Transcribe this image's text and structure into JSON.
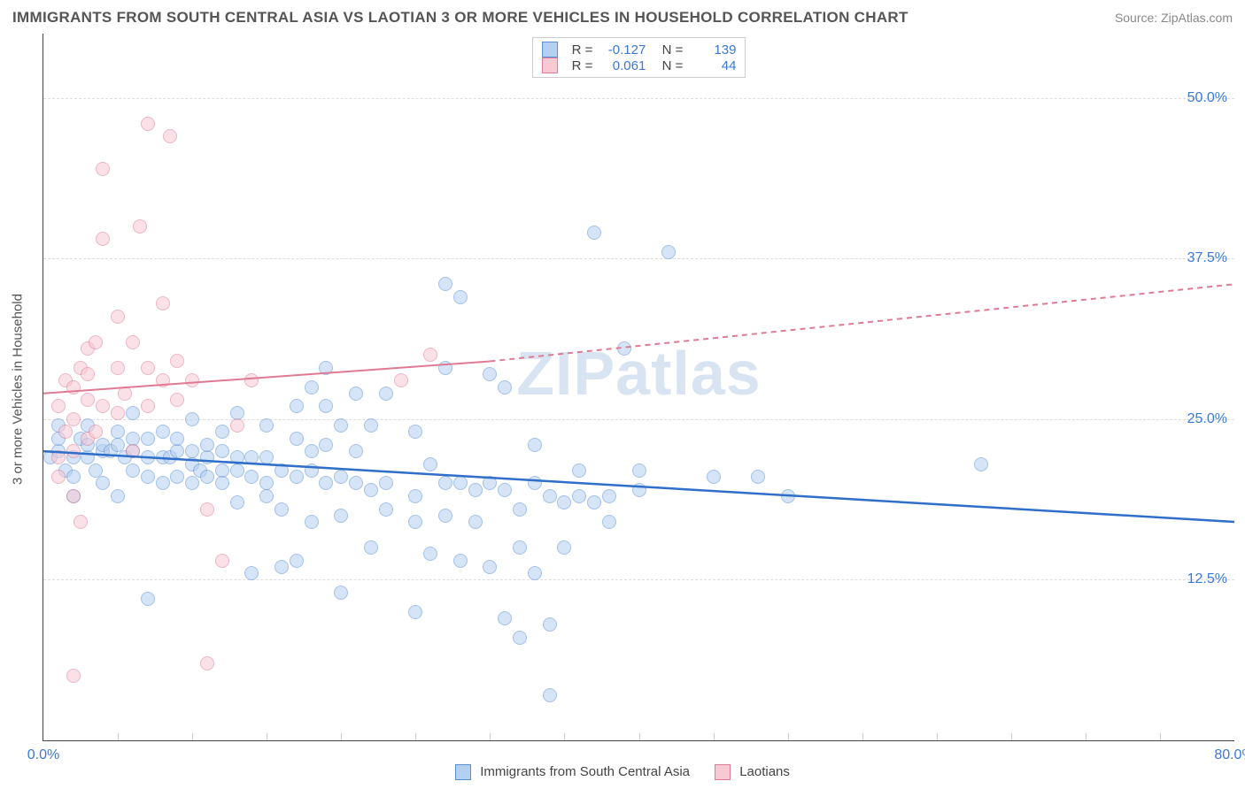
{
  "header": {
    "title": "IMMIGRANTS FROM SOUTH CENTRAL ASIA VS LAOTIAN 3 OR MORE VEHICLES IN HOUSEHOLD CORRELATION CHART",
    "source": "Source: ZipAtlas.com"
  },
  "watermark": "ZIPatlas",
  "chart": {
    "type": "scatter",
    "background_color": "#ffffff",
    "grid_color": "#dddddd",
    "axis_color": "#444444",
    "tick_font_color": "#3a78d6",
    "tick_font_size": 16,
    "xlim": [
      0,
      80
    ],
    "ylim": [
      0,
      55
    ],
    "yticks": [
      12.5,
      25.0,
      37.5,
      50.0
    ],
    "ytick_labels": [
      "12.5%",
      "25.0%",
      "37.5%",
      "50.0%"
    ],
    "xticks": [
      0,
      80
    ],
    "xtick_labels": [
      "0.0%",
      "80.0%"
    ],
    "xtick_minor": [
      5,
      10,
      15,
      20,
      25,
      30,
      35,
      40,
      45,
      50,
      55,
      60,
      65,
      70,
      75
    ],
    "yaxis_title": "3 or more Vehicles in Household",
    "marker_radius": 8,
    "marker_opacity": 0.55,
    "series": [
      {
        "id": "sca",
        "label": "Immigrants from South Central Asia",
        "fill": "#b4cff0",
        "stroke": "#5a8fd6",
        "line_color": "#2f6fc9",
        "line_width": 2.5,
        "R": "-0.127",
        "N": "139",
        "trend": {
          "x1": 0,
          "y1": 22.5,
          "x2": 80,
          "y2": 17.0,
          "dash": null
        },
        "points": [
          [
            0.5,
            22
          ],
          [
            1,
            22.5
          ],
          [
            1,
            23.5
          ],
          [
            1.5,
            21
          ],
          [
            1,
            24.5
          ],
          [
            2,
            22
          ],
          [
            2,
            20.5
          ],
          [
            2,
            19
          ],
          [
            2.5,
            23.5
          ],
          [
            3,
            22
          ],
          [
            3,
            23
          ],
          [
            3,
            24.5
          ],
          [
            3.5,
            21
          ],
          [
            4,
            22.5
          ],
          [
            4,
            23
          ],
          [
            4,
            20
          ],
          [
            4.5,
            22.5
          ],
          [
            5,
            23
          ],
          [
            5,
            24
          ],
          [
            5,
            19
          ],
          [
            5.5,
            22
          ],
          [
            6,
            22.5
          ],
          [
            6,
            21
          ],
          [
            6,
            23.5
          ],
          [
            6,
            25.5
          ],
          [
            7,
            22
          ],
          [
            7,
            20.5
          ],
          [
            7,
            23.5
          ],
          [
            7,
            11
          ],
          [
            8,
            22
          ],
          [
            8,
            20
          ],
          [
            8,
            24
          ],
          [
            8.5,
            22
          ],
          [
            9,
            22.5
          ],
          [
            9,
            20.5
          ],
          [
            9,
            23.5
          ],
          [
            10,
            21.5
          ],
          [
            10,
            20
          ],
          [
            10,
            22.5
          ],
          [
            10,
            25
          ],
          [
            10.5,
            21
          ],
          [
            11,
            22
          ],
          [
            11,
            20.5
          ],
          [
            11,
            23
          ],
          [
            12,
            21
          ],
          [
            12,
            20
          ],
          [
            12,
            22.5
          ],
          [
            12,
            24
          ],
          [
            13,
            22
          ],
          [
            13,
            21
          ],
          [
            13,
            18.5
          ],
          [
            13,
            25.5
          ],
          [
            14,
            20.5
          ],
          [
            14,
            22
          ],
          [
            14,
            13
          ],
          [
            15,
            22
          ],
          [
            15,
            20
          ],
          [
            15,
            24.5
          ],
          [
            15,
            19
          ],
          [
            16,
            21
          ],
          [
            16,
            18
          ],
          [
            16,
            13.5
          ],
          [
            17,
            20.5
          ],
          [
            17,
            23.5
          ],
          [
            17,
            26
          ],
          [
            17,
            14
          ],
          [
            18,
            21
          ],
          [
            18,
            22.5
          ],
          [
            18,
            17
          ],
          [
            18,
            27.5
          ],
          [
            19,
            20
          ],
          [
            19,
            23
          ],
          [
            19,
            26
          ],
          [
            19,
            29
          ],
          [
            20,
            20.5
          ],
          [
            20,
            17.5
          ],
          [
            20,
            24.5
          ],
          [
            20,
            11.5
          ],
          [
            21,
            20
          ],
          [
            21,
            22.5
          ],
          [
            21,
            27
          ],
          [
            22,
            19.5
          ],
          [
            22,
            15
          ],
          [
            22,
            24.5
          ],
          [
            23,
            20
          ],
          [
            23,
            18
          ],
          [
            23,
            27
          ],
          [
            25,
            19
          ],
          [
            25,
            17
          ],
          [
            25,
            24
          ],
          [
            25,
            10
          ],
          [
            26,
            21.5
          ],
          [
            26,
            14.5
          ],
          [
            27,
            20
          ],
          [
            27,
            17.5
          ],
          [
            27,
            29
          ],
          [
            27,
            35.5
          ],
          [
            28,
            20
          ],
          [
            28,
            14
          ],
          [
            28,
            34.5
          ],
          [
            29,
            19.5
          ],
          [
            29,
            17
          ],
          [
            30,
            20
          ],
          [
            30,
            13.5
          ],
          [
            30,
            28.5
          ],
          [
            31,
            19.5
          ],
          [
            31,
            9.5
          ],
          [
            31,
            27.5
          ],
          [
            32,
            18
          ],
          [
            32,
            15
          ],
          [
            32,
            8
          ],
          [
            33,
            20
          ],
          [
            33,
            13
          ],
          [
            33,
            23
          ],
          [
            34,
            19
          ],
          [
            34,
            9
          ],
          [
            34,
            3.5
          ],
          [
            35,
            18.5
          ],
          [
            35,
            15
          ],
          [
            36,
            21
          ],
          [
            36,
            19
          ],
          [
            37,
            18.5
          ],
          [
            37,
            39.5
          ],
          [
            38,
            19
          ],
          [
            38,
            17
          ],
          [
            39,
            30.5
          ],
          [
            40,
            19.5
          ],
          [
            40,
            21
          ],
          [
            42,
            38
          ],
          [
            45,
            20.5
          ],
          [
            48,
            20.5
          ],
          [
            50,
            19
          ],
          [
            63,
            21.5
          ]
        ]
      },
      {
        "id": "lao",
        "label": "Laotians",
        "fill": "#f7c9d4",
        "stroke": "#e07a94",
        "line_color": "#e07a94",
        "line_width": 2,
        "R": "0.061",
        "N": "44",
        "trend": {
          "x1": 0,
          "y1": 27.0,
          "x2": 30,
          "y2": 29.5,
          "dash": null
        },
        "trend_ext": {
          "x1": 30,
          "y1": 29.5,
          "x2": 80,
          "y2": 35.5,
          "dash": "6,5"
        },
        "points": [
          [
            1,
            22
          ],
          [
            1,
            20.5
          ],
          [
            1.5,
            24
          ],
          [
            1,
            26
          ],
          [
            1.5,
            28
          ],
          [
            2,
            25
          ],
          [
            2,
            27.5
          ],
          [
            2,
            22.5
          ],
          [
            2.5,
            29
          ],
          [
            2,
            19
          ],
          [
            2.5,
            17
          ],
          [
            3,
            26.5
          ],
          [
            3,
            28.5
          ],
          [
            3,
            23.5
          ],
          [
            3,
            30.5
          ],
          [
            3.5,
            24
          ],
          [
            3.5,
            31
          ],
          [
            4,
            26
          ],
          [
            4,
            44.5
          ],
          [
            4,
            39
          ],
          [
            5,
            29
          ],
          [
            5,
            25.5
          ],
          [
            5,
            33
          ],
          [
            5.5,
            27
          ],
          [
            6,
            22.5
          ],
          [
            6,
            31
          ],
          [
            6.5,
            40
          ],
          [
            7,
            29
          ],
          [
            7,
            26
          ],
          [
            7,
            48
          ],
          [
            8,
            28
          ],
          [
            8.5,
            47
          ],
          [
            8,
            34
          ],
          [
            9,
            26.5
          ],
          [
            9,
            29.5
          ],
          [
            10,
            28
          ],
          [
            11,
            6
          ],
          [
            11,
            18
          ],
          [
            12,
            14
          ],
          [
            13,
            24.5
          ],
          [
            14,
            28
          ],
          [
            2,
            5
          ],
          [
            24,
            28
          ],
          [
            26,
            30
          ]
        ]
      }
    ]
  },
  "legend": {
    "items": [
      {
        "label": "Immigrants from South Central Asia",
        "fill": "#b4cff0",
        "stroke": "#5a8fd6"
      },
      {
        "label": "Laotians",
        "fill": "#f7c9d4",
        "stroke": "#e07a94"
      }
    ]
  }
}
